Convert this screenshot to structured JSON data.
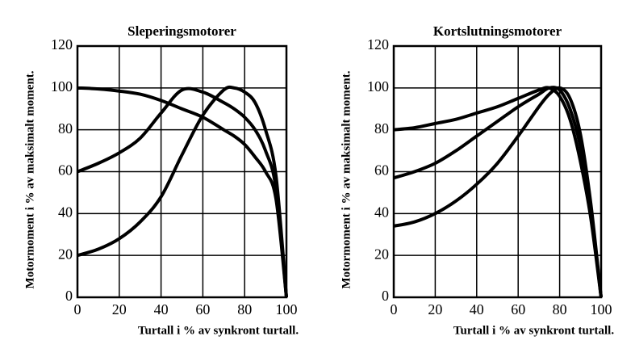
{
  "chart_data": [
    {
      "type": "line",
      "title": "Sleperingsmotorer",
      "xlabel": "Turtall i % av synkront turtall.",
      "ylabel": "Motormoment i % av maksimalt moment.",
      "x": [
        0,
        10,
        20,
        30,
        40,
        50,
        60,
        70,
        75,
        80,
        85,
        90,
        95,
        100
      ],
      "series": [
        {
          "color": "#000000",
          "values": [
            100,
            99.5,
            98.5,
            97,
            94,
            90,
            86,
            80,
            77,
            73,
            67,
            60,
            47,
            0
          ]
        },
        {
          "color": "#000000",
          "values": [
            60,
            64,
            69,
            76,
            88,
            99,
            98,
            93,
            90,
            86,
            80,
            70,
            52,
            0
          ]
        },
        {
          "color": "#000000",
          "values": [
            20,
            23,
            28,
            36,
            48,
            68,
            87,
            99,
            100,
            98,
            93,
            80,
            58,
            0
          ]
        }
      ],
      "xlim": [
        0,
        100
      ],
      "xticks": [
        0,
        20,
        40,
        60,
        80,
        100
      ],
      "ylim": [
        0,
        120
      ],
      "yticks": [
        0,
        20,
        40,
        60,
        80,
        100,
        120
      ],
      "grid": true
    },
    {
      "type": "line",
      "title": "Kortslutningsmotorer",
      "xlabel": "Turtall i % av synkront turtall.",
      "ylabel": "Motormoment i % av maksimalt moment.",
      "x": [
        0,
        10,
        20,
        30,
        40,
        50,
        60,
        70,
        75,
        80,
        85,
        90,
        95,
        100
      ],
      "series": [
        {
          "color": "#000000",
          "values": [
            80,
            81,
            83,
            85,
            88,
            91,
            95,
            99,
            100,
            96,
            85,
            65,
            38,
            0
          ]
        },
        {
          "color": "#000000",
          "values": [
            57,
            60,
            64,
            70,
            77,
            84,
            91,
            97,
            100,
            99,
            90,
            72,
            42,
            0
          ]
        },
        {
          "color": "#000000",
          "values": [
            34,
            36,
            40,
            46,
            54,
            64,
            77,
            91,
            97,
            100,
            95,
            78,
            45,
            0
          ]
        }
      ],
      "xlim": [
        0,
        100
      ],
      "xticks": [
        0,
        20,
        40,
        60,
        80,
        100
      ],
      "ylim": [
        0,
        120
      ],
      "yticks": [
        0,
        20,
        40,
        60,
        80,
        100,
        120
      ],
      "grid": true
    }
  ]
}
